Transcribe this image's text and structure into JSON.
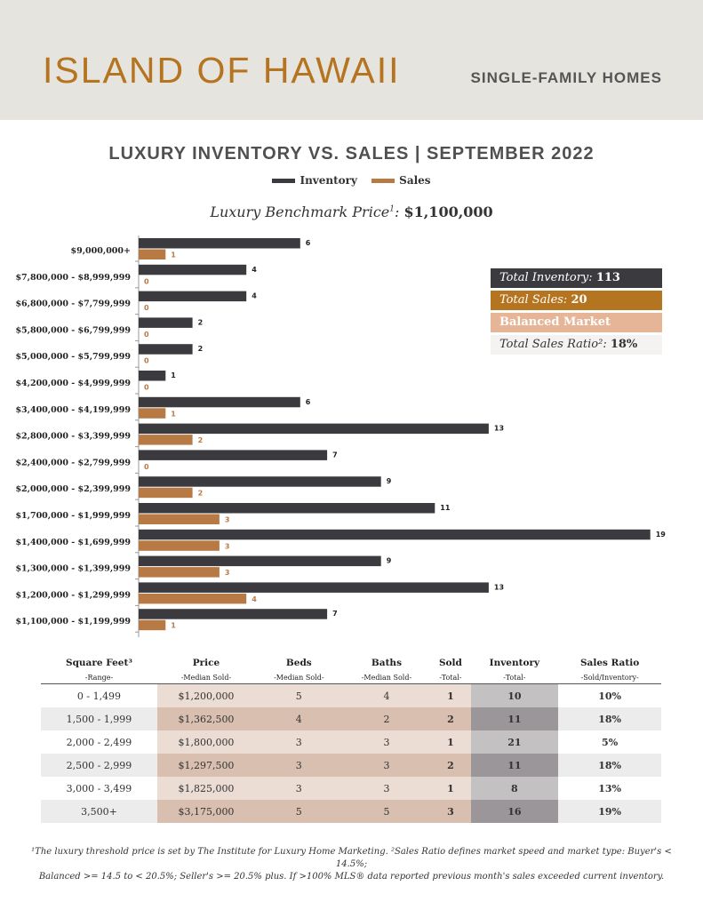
{
  "header": {
    "place": "ISLAND OF HAWAII",
    "subtitle": "SINGLE-FAMILY HOMES"
  },
  "benchmark": {
    "label": "Luxury Benchmark Price",
    "sup": "1",
    "value": "$1,100,000"
  },
  "summary": {
    "inventory_label": "Total Inventory:",
    "inventory_value": "113",
    "sales_label": "Total Sales:",
    "sales_value": "20",
    "market": "Balanced Market",
    "ratio_label": "Total Sales Ratio²:",
    "ratio_value": "18%"
  },
  "colors": {
    "inventory": "#3b3a3e",
    "sales": "#b87a45",
    "accent": "#b5741f",
    "balanced": "#e6b597"
  },
  "chart_data": {
    "type": "bar",
    "orientation": "horizontal",
    "title": "LUXURY INVENTORY VS. SALES | SEPTEMBER 2022",
    "categories": [
      "$9,000,000+",
      "$7,800,000 - $8,999,999",
      "$6,800,000 - $7,799,999",
      "$5,800,000 - $6,799,999",
      "$5,000,000 - $5,799,999",
      "$4,200,000 - $4,999,999",
      "$3,400,000 - $4,199,999",
      "$2,800,000 - $3,399,999",
      "$2,400,000 - $2,799,999",
      "$2,000,000 - $2,399,999",
      "$1,700,000 - $1,999,999",
      "$1,400,000 - $1,699,999",
      "$1,300,000 - $1,399,999",
      "$1,200,000 - $1,299,999",
      "$1,100,000 - $1,199,999"
    ],
    "series": [
      {
        "name": "Inventory",
        "values": [
          6,
          4,
          4,
          2,
          2,
          1,
          6,
          13,
          7,
          9,
          11,
          19,
          9,
          13,
          7
        ]
      },
      {
        "name": "Sales",
        "values": [
          1,
          0,
          0,
          0,
          0,
          0,
          1,
          2,
          0,
          2,
          3,
          3,
          3,
          4,
          1
        ]
      }
    ],
    "legend": "top-center",
    "grid": false
  },
  "table": {
    "headers": [
      "Square Feet³",
      "Price",
      "Beds",
      "Baths",
      "Sold",
      "Inventory",
      "Sales Ratio"
    ],
    "subheaders": [
      "-Range-",
      "-Median Sold-",
      "-Median Sold-",
      "-Median Sold-",
      "-Total-",
      "-Total-",
      "-Sold/Inventory-"
    ],
    "rows": [
      [
        "0 - 1,499",
        "$1,200,000",
        "5",
        "4",
        "1",
        "10",
        "10%"
      ],
      [
        "1,500 - 1,999",
        "$1,362,500",
        "4",
        "2",
        "2",
        "11",
        "18%"
      ],
      [
        "2,000 - 2,499",
        "$1,800,000",
        "3",
        "3",
        "1",
        "21",
        "5%"
      ],
      [
        "2,500 - 2,999",
        "$1,297,500",
        "3",
        "3",
        "2",
        "11",
        "18%"
      ],
      [
        "3,000 - 3,499",
        "$1,825,000",
        "3",
        "3",
        "1",
        "8",
        "13%"
      ],
      [
        "3,500+",
        "$3,175,000",
        "5",
        "5",
        "3",
        "16",
        "19%"
      ]
    ]
  },
  "footnote": {
    "line1": "¹The luxury threshold price is set by The Institute for Luxury Home Marketing. ²Sales Ratio defines market speed and market type: Buyer's < 14.5%;",
    "line2": "Balanced >= 14.5 to < 20.5%; Seller's >= 20.5% plus. If >100% MLS® data reported previous month's sales exceeded current inventory."
  }
}
